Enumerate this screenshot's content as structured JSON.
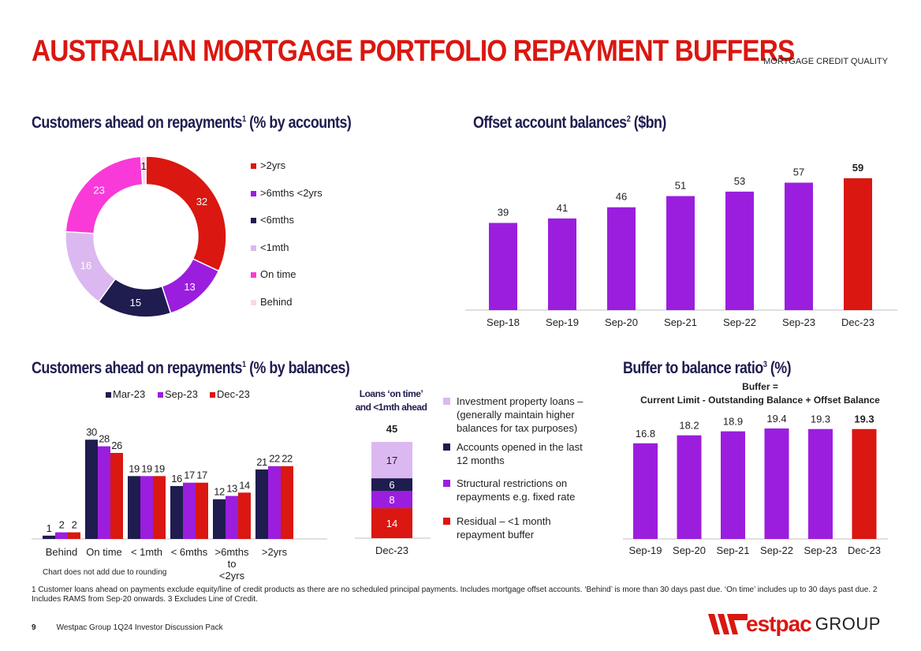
{
  "page": {
    "title": "AUSTRALIAN MORTGAGE PORTFOLIO REPAYMENT BUFFERS",
    "section": "MORTGAGE CREDIT QUALITY",
    "page_number": "9",
    "footer_text": "Westpac Group 1Q24 Investor Discussion Pack",
    "logo_text": "estpac",
    "logo_group": "GROUP",
    "footnote": "1 Customer loans ahead on payments exclude equity/line of credit products as there are no scheduled principal payments. Includes mortgage offset accounts. ‘Behind’ is more than 30 days past due. ‘On time’ includes up to 30 days past due. 2 Includes RAMS from Sep-20 onwards. 3 Excludes Line of Credit.",
    "colors": {
      "red": "#da1710",
      "purple": "#9b1ede",
      "navy": "#1f1c4f",
      "lilac": "#dcb8f0",
      "pink": "#f93ad9",
      "pale_pink": "#f9d7ee"
    }
  },
  "donut": {
    "title": "Customers ahead on repayments",
    "title_sup": "1",
    "title_suffix": " (% by accounts)"
  },
  "offset": {
    "title": "Offset account balances",
    "title_sup": "2",
    "title_suffix": " ($bn)"
  },
  "balances": {
    "title": "Customers ahead on repayments",
    "title_sup": "1",
    "title_suffix": " (% by balances)",
    "note": "Chart does not add due to rounding"
  },
  "stack": {
    "header_line1": "Loans ‘on time’",
    "header_line2": "and <1mth ahead",
    "legend": [
      {
        "lines": [
          "Investment property loans –",
          "(generally maintain higher",
          "balances for tax purposes)"
        ],
        "color": "#dcb8f0"
      },
      {
        "lines": [
          "Accounts opened in the last",
          "12 months"
        ],
        "color": "#1f1c4f"
      },
      {
        "lines": [
          "Structural restrictions on",
          "repayments e.g. fixed rate"
        ],
        "color": "#9b1ede"
      },
      {
        "lines": [
          "Residual – <1 month",
          "repayment buffer"
        ],
        "color": "#da1710"
      }
    ]
  },
  "buffer": {
    "title": "Buffer to balance ratio",
    "title_sup": "3",
    "title_suffix": " (%)",
    "formula_line1": "Buffer =",
    "formula_line2": "Current Limit - Outstanding Balance + Offset Balance"
  },
  "chart_data": [
    {
      "type": "pie",
      "title": "Customers ahead on repayments (% by accounts)",
      "categories": [
        ">2yrs",
        ">6mths  <2yrs",
        "<6mths",
        "<1mth",
        "On time",
        "Behind"
      ],
      "values": [
        32,
        13,
        15,
        16,
        23,
        1
      ],
      "colors": [
        "#da1710",
        "#9b1ede",
        "#1f1c4f",
        "#dcb8f0",
        "#f93ad9",
        "#f9d7ee"
      ],
      "label_colors": [
        "#ffffff",
        "#ffffff",
        "#ffffff",
        "#ffffff",
        "#ffffff",
        "#1f1f1f"
      ]
    },
    {
      "type": "bar",
      "title": "Offset account balances ($bn)",
      "categories": [
        "Sep-18",
        "Sep-19",
        "Sep-20",
        "Sep-21",
        "Sep-22",
        "Sep-23",
        "Dec-23"
      ],
      "values": [
        39,
        41,
        46,
        51,
        53,
        57,
        59
      ],
      "highlight_last": true,
      "ylim": [
        0,
        60
      ]
    },
    {
      "type": "bar",
      "title": "Customers ahead on repayments (% by balances)",
      "categories": [
        "Behind",
        "On time",
        "< 1mth",
        "< 6mths",
        ">6mths to <2yrs",
        ">2yrs"
      ],
      "category_lines": [
        [
          "Behind"
        ],
        [
          "On time"
        ],
        [
          "< 1mth"
        ],
        [
          "< 6mths"
        ],
        [
          ">6mths",
          "to",
          "<2yrs"
        ],
        [
          ">2yrs"
        ]
      ],
      "series": [
        {
          "name": "Mar-23",
          "values": [
            1,
            30,
            19,
            16,
            12,
            21
          ],
          "color": "#1f1c4f"
        },
        {
          "name": "Sep-23",
          "values": [
            2,
            28,
            19,
            17,
            13,
            22
          ],
          "color": "#9b1ede"
        },
        {
          "name": "Dec-23",
          "values": [
            2,
            26,
            19,
            17,
            14,
            22
          ],
          "color": "#da1710"
        }
      ],
      "ylim": [
        0,
        31
      ]
    },
    {
      "type": "bar",
      "title": "Loans ‘on time’ and <1mth ahead",
      "categories": [
        "Dec-23"
      ],
      "total": 45,
      "series": [
        {
          "name": "Residual – <1 month repayment buffer",
          "values": [
            14
          ],
          "color": "#da1710"
        },
        {
          "name": "Structural restrictions on repayments e.g. fixed rate",
          "values": [
            8
          ],
          "color": "#9b1ede"
        },
        {
          "name": "Accounts opened in the last 12 months",
          "values": [
            6
          ],
          "color": "#1f1c4f"
        },
        {
          "name": "Investment property loans – (generally maintain higher balances for tax purposes)",
          "values": [
            17
          ],
          "color": "#dcb8f0"
        }
      ],
      "ylim": [
        0,
        45
      ]
    },
    {
      "type": "bar",
      "title": "Buffer to balance ratio (%)",
      "categories": [
        "Sep-19",
        "Sep-20",
        "Sep-21",
        "Sep-22",
        "Sep-23",
        "Dec-23"
      ],
      "values": [
        16.8,
        18.2,
        18.9,
        19.4,
        19.3,
        19.3
      ],
      "labels": [
        "16.8",
        "18.2",
        "18.9",
        "19.4",
        "19.3",
        "19.3"
      ],
      "highlight_last": true,
      "ylim": [
        0,
        19.4
      ]
    }
  ]
}
